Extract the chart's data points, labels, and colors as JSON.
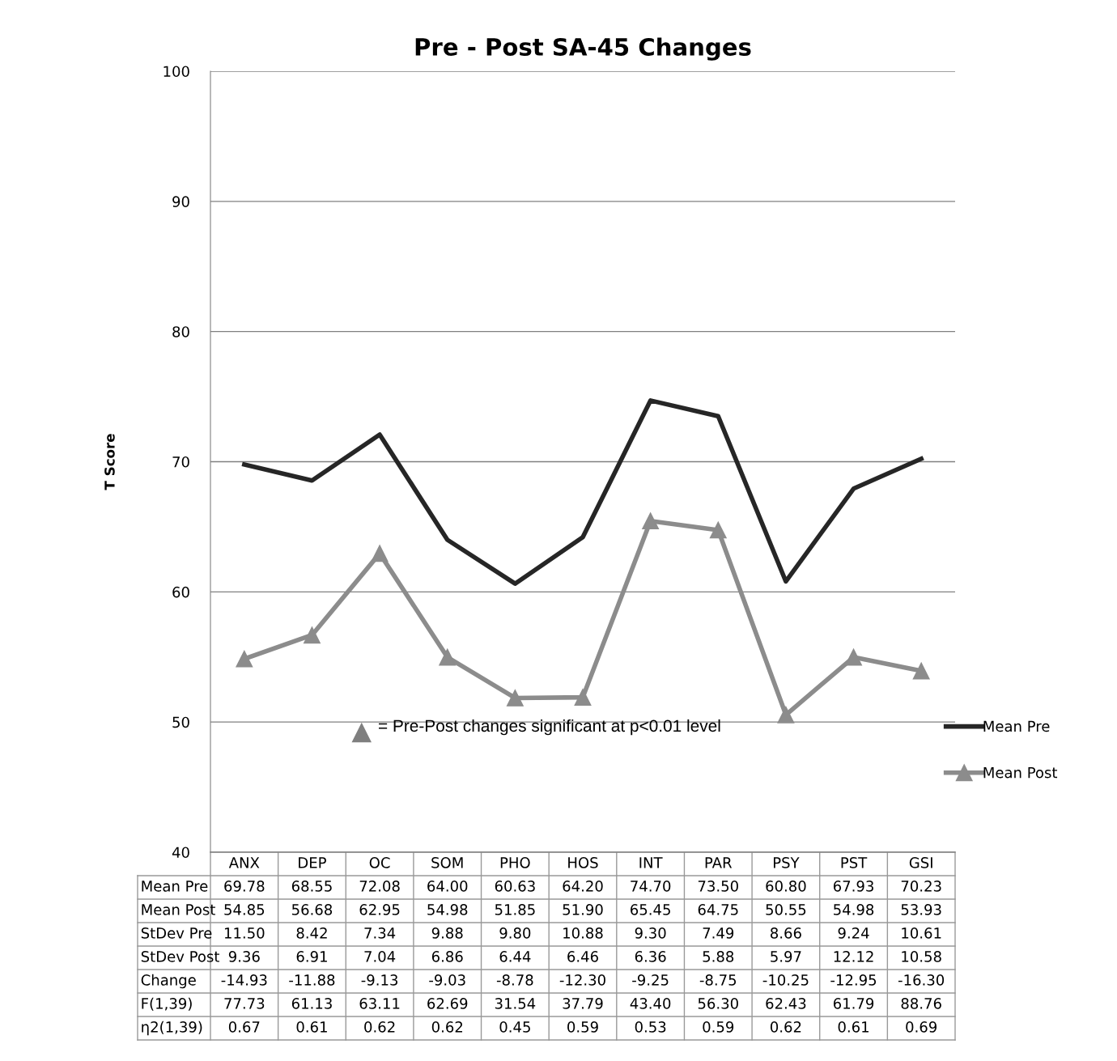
{
  "chart_data": {
    "type": "line",
    "title": "Pre - Post SA-45 Changes",
    "ylabel": "T Score",
    "categories": [
      "ANX",
      "DEP",
      "OC",
      "SOM",
      "PHO",
      "HOS",
      "INT",
      "PAR",
      "PSY",
      "PST",
      "GSI"
    ],
    "series": [
      {
        "name": "Mean Pre",
        "color": "#262626",
        "marker": "none",
        "values": [
          69.78,
          68.55,
          72.08,
          64.0,
          60.63,
          64.2,
          74.7,
          73.5,
          60.8,
          67.93,
          70.23
        ]
      },
      {
        "name": "Mean Post",
        "color": "#8c8c8c",
        "marker": "triangle",
        "values": [
          54.85,
          56.68,
          62.95,
          54.98,
          51.85,
          51.9,
          65.45,
          64.75,
          50.55,
          54.98,
          53.93
        ]
      }
    ],
    "ylim": [
      40,
      100
    ],
    "yticks": [
      40,
      50,
      60,
      70,
      80,
      90,
      100
    ],
    "grid": "y",
    "legend": "right",
    "line_style": "solid",
    "annotations": [
      "= Pre-Post changes significant at p<0.01 level",
      "Mean Pre",
      "69.78",
      "68.55",
      "72.08",
      "64.00",
      "60.63",
      "64.20",
      "74.70",
      "73.50",
      "60.80",
      "67.93",
      "70.23",
      "Mean Post",
      "54.85",
      "56.68",
      "62.95",
      "54.98",
      "51.85",
      "51.90",
      "65.45",
      "64.75",
      "50.55",
      "54.98",
      "53.93",
      "StDev Pre",
      "11.50",
      "8.42",
      "7.34",
      "9.88",
      "9.80",
      "10.88",
      "9.30",
      "7.49",
      "8.66",
      "9.24",
      "10.61",
      "StDev Post",
      "9.36",
      "6.91",
      "7.04",
      "6.86",
      "6.44",
      "6.46",
      "6.36",
      "5.88",
      "5.97",
      "12.12",
      "10.58",
      "Change",
      "-14.93",
      "-11.88",
      "-9.13",
      "-9.03",
      "-8.78",
      "-12.30",
      "-9.25",
      "-8.75",
      "-10.25",
      "-12.95",
      "-16.30",
      "F(1,39)",
      "77.73",
      "61.13",
      "63.11",
      "62.69",
      "31.54",
      "37.79",
      "43.40",
      "56.30",
      "62.43",
      "61.79",
      "88.76",
      "η2(1,39)",
      "0.67",
      "0.61",
      "0.62",
      "0.62",
      "0.45",
      "0.59",
      "0.53",
      "0.59",
      "0.62",
      "0.61",
      "0.69"
    ]
  }
}
